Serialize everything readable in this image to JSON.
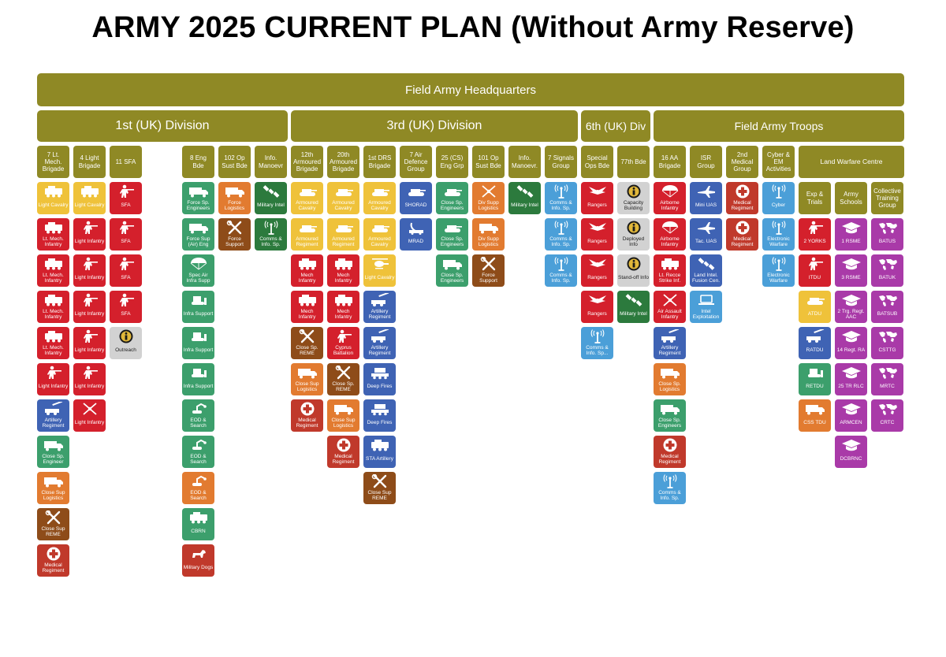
{
  "title": "ARMY 2025 CURRENT PLAN (Without Army Reserve)",
  "colors": {
    "olive": "#8f8925",
    "red": "#d4202c",
    "yellow": "#efc23a",
    "green": "#3c9f6c",
    "orange": "#e27b30",
    "brown": "#8e4c19",
    "darkred": "#c0392b",
    "blue": "#3f63b4",
    "lightblue": "#4b9fd8",
    "darkgreen": "#2c7a3d",
    "grey": "#d2d2d2",
    "magenta": "#a93aa8"
  },
  "hq": "Field Army Headquarters",
  "divisions": [
    "1st (UK) Division",
    "3rd (UK) Division",
    "6th (UK) Div",
    "Field Army Troops"
  ],
  "columns": [
    {
      "header": "7 Lt. Mech. Brigade",
      "tiles": [
        {
          "label": "Light Cavalry",
          "color": "yellow",
          "icon": "vehicle-icon"
        },
        {
          "label": "Lt. Mech. Infantry",
          "color": "red",
          "icon": "vehicle-icon"
        },
        {
          "label": "Lt. Mech. Infantry",
          "color": "red",
          "icon": "vehicle-icon"
        },
        {
          "label": "Lt. Mech. Infantry",
          "color": "red",
          "icon": "vehicle-icon"
        },
        {
          "label": "Lt. Mech. Infantry",
          "color": "red",
          "icon": "vehicle-icon"
        },
        {
          "label": "Light Infantry",
          "color": "red",
          "icon": "soldier-icon"
        },
        {
          "label": "Artillery Regiment",
          "color": "blue",
          "icon": "artillery-icon"
        },
        {
          "label": "Close Sp. Engineer",
          "color": "green",
          "icon": "truck-icon"
        },
        {
          "label": "Close Sup Logistics",
          "color": "orange",
          "icon": "truck-icon"
        },
        {
          "label": "Close Sup REME",
          "color": "brown",
          "icon": "tools-icon"
        },
        {
          "label": "Medical Regiment",
          "color": "darkred",
          "icon": "medical-cross-icon"
        }
      ]
    },
    {
      "header": "4 Light Brigade",
      "tiles": [
        {
          "label": "Light Cavalry",
          "color": "yellow",
          "icon": "vehicle-icon"
        },
        {
          "label": "Light Infantry",
          "color": "red",
          "icon": "soldier-icon"
        },
        {
          "label": "Light Infantry",
          "color": "red",
          "icon": "soldier-icon"
        },
        {
          "label": "Light Infantry",
          "color": "red",
          "icon": "soldier-icon"
        },
        {
          "label": "Light Infantry",
          "color": "red",
          "icon": "soldier-icon"
        },
        {
          "label": "Light Infantry",
          "color": "red",
          "icon": "soldier-icon"
        },
        {
          "label": "Light Infantry",
          "color": "red",
          "icon": "crossed-swords-icon"
        }
      ]
    },
    {
      "header": "11 SFA",
      "tiles": [
        {
          "label": "SFA",
          "color": "red",
          "icon": "soldier-icon"
        },
        {
          "label": "SFA",
          "color": "red",
          "icon": "soldier-icon"
        },
        {
          "label": "SFA",
          "color": "red",
          "icon": "soldier-icon"
        },
        {
          "label": "SFA",
          "color": "red",
          "icon": "soldier-icon"
        },
        {
          "label": "Outreach",
          "color": "grey",
          "icon": "info-icon"
        }
      ]
    },
    {
      "header": "8 Eng Bde",
      "tiles": [
        {
          "label": "Force Sp. Engineers",
          "color": "green",
          "icon": "truck-icon"
        },
        {
          "label": "Force Sup (Air) Eng",
          "color": "green",
          "icon": "truck-icon"
        },
        {
          "label": "Spec Air Infra Supp",
          "color": "green",
          "icon": "parachute-icon"
        },
        {
          "label": "Infra Support",
          "color": "green",
          "icon": "bulldozer-icon"
        },
        {
          "label": "Infra Support",
          "color": "green",
          "icon": "bulldozer-icon"
        },
        {
          "label": "Infra Support",
          "color": "green",
          "icon": "bulldozer-icon"
        },
        {
          "label": "EOD & Search",
          "color": "green",
          "icon": "robot-icon"
        },
        {
          "label": "EOD & Search",
          "color": "green",
          "icon": "robot-icon"
        },
        {
          "label": "EOD & Search",
          "color": "orange",
          "icon": "robot-icon"
        },
        {
          "label": "CBRN",
          "color": "green",
          "icon": "vehicle-icon"
        },
        {
          "label": "Military Dogs",
          "color": "darkred",
          "icon": "dog-icon"
        }
      ]
    },
    {
      "header": "102 Op Sust Bde",
      "tiles": [
        {
          "label": "Force Logistics",
          "color": "orange",
          "icon": "truck-icon"
        },
        {
          "label": "Force Support",
          "color": "brown",
          "icon": "tools-icon"
        }
      ]
    },
    {
      "header": "Info. Manoevr",
      "tiles": [
        {
          "label": "Military Intel",
          "color": "darkgreen",
          "icon": "satellite-icon"
        },
        {
          "label": "Comms & Info. Sp.",
          "color": "darkgreen",
          "icon": "antenna-icon"
        }
      ]
    },
    {
      "header": "12th Armoured Brigade",
      "tiles": [
        {
          "label": "Armoured Cavalry",
          "color": "yellow",
          "icon": "tank-icon"
        },
        {
          "label": "Armoured Regiment",
          "color": "yellow",
          "icon": "tank-icon"
        },
        {
          "label": "Mech Infantry",
          "color": "red",
          "icon": "vehicle-icon"
        },
        {
          "label": "Mech Infantry",
          "color": "red",
          "icon": "vehicle-icon"
        },
        {
          "label": "Close Sp. REME",
          "color": "brown",
          "icon": "tools-icon"
        },
        {
          "label": "Close Sup Logistics",
          "color": "orange",
          "icon": "truck-icon"
        },
        {
          "label": "Medical Regiment",
          "color": "darkred",
          "icon": "medical-cross-icon"
        }
      ]
    },
    {
      "header": "20th Armoured Brigade",
      "tiles": [
        {
          "label": "Armoured Cavalry",
          "color": "yellow",
          "icon": "tank-icon"
        },
        {
          "label": "Armoured Regiment",
          "color": "yellow",
          "icon": "tank-icon"
        },
        {
          "label": "Mech Infantry",
          "color": "red",
          "icon": "vehicle-icon"
        },
        {
          "label": "Mech Infantry",
          "color": "red",
          "icon": "vehicle-icon"
        },
        {
          "label": "Cyprus Battalion",
          "color": "red",
          "icon": "soldier-icon"
        },
        {
          "label": "Close Sp. REME",
          "color": "brown",
          "icon": "tools-icon"
        },
        {
          "label": "Close Sup Logistics",
          "color": "orange",
          "icon": "truck-icon"
        },
        {
          "label": "Medical Regiment",
          "color": "darkred",
          "icon": "medical-cross-icon"
        }
      ]
    },
    {
      "header": "1st DRS Brigade",
      "tiles": [
        {
          "label": "Armoured Cavalry",
          "color": "yellow",
          "icon": "tank-icon"
        },
        {
          "label": "Armoured Cavalry",
          "color": "yellow",
          "icon": "tank-icon"
        },
        {
          "label": "Light Cavalry",
          "color": "yellow",
          "icon": "helicopter-icon"
        },
        {
          "label": "Artillery Regiment",
          "color": "blue",
          "icon": "artillery-icon"
        },
        {
          "label": "Artillery Regiment",
          "color": "blue",
          "icon": "artillery-icon"
        },
        {
          "label": "Deep Fires",
          "color": "blue",
          "icon": "rocket-launcher-icon"
        },
        {
          "label": "Deep Fires",
          "color": "blue",
          "icon": "rocket-launcher-icon"
        },
        {
          "label": "STA Artillery",
          "color": "blue",
          "icon": "vehicle-icon"
        },
        {
          "label": "Close Sup REME",
          "color": "brown",
          "icon": "tools-icon"
        }
      ]
    },
    {
      "header": "7 Air Defence Group",
      "tiles": [
        {
          "label": "SHORAD",
          "color": "blue",
          "icon": "tank-icon"
        },
        {
          "label": "MRAD",
          "color": "blue",
          "icon": "radar-icon"
        }
      ]
    },
    {
      "header": "25 (CS) Eng Grp",
      "tiles": [
        {
          "label": "Close Sp. Engineers",
          "color": "green",
          "icon": "tank-icon"
        },
        {
          "label": "Close Sp. Engineers",
          "color": "green",
          "icon": "tank-icon"
        },
        {
          "label": "Close Sp. Engineers",
          "color": "green",
          "icon": "truck-icon"
        }
      ]
    },
    {
      "header": "101 Op Sust Bde",
      "tiles": [
        {
          "label": "Div Supp Logistics",
          "color": "orange",
          "icon": "crossed-swords-icon"
        },
        {
          "label": "Div Supp Logistics",
          "color": "orange",
          "icon": "truck-icon"
        },
        {
          "label": "Force Support",
          "color": "brown",
          "icon": "tools-icon"
        }
      ]
    },
    {
      "header": "Info. Manoevr.",
      "tiles": [
        {
          "label": "Military Intel",
          "color": "darkgreen",
          "icon": "satellite-icon"
        }
      ]
    },
    {
      "header": "7 Signals Group",
      "tiles": [
        {
          "label": "Comms & Info. Sp.",
          "color": "lightblue",
          "icon": "antenna-icon"
        },
        {
          "label": "Comms & Info. Sp.",
          "color": "lightblue",
          "icon": "antenna-icon"
        },
        {
          "label": "Comms & Info. Sp.",
          "color": "lightblue",
          "icon": "antenna-icon"
        }
      ]
    },
    {
      "header": "Special Ops Bde",
      "tiles": [
        {
          "label": "Rangers",
          "color": "red",
          "icon": "wings-icon"
        },
        {
          "label": "Rangers",
          "color": "red",
          "icon": "wings-icon"
        },
        {
          "label": "Rangers",
          "color": "red",
          "icon": "wings-icon"
        },
        {
          "label": "Rangers",
          "color": "red",
          "icon": "wings-icon"
        },
        {
          "label": "Comms & Info. Sp...",
          "color": "lightblue",
          "icon": "antenna-icon"
        }
      ]
    },
    {
      "header": "77th Bde",
      "tiles": [
        {
          "label": "Capacity Building",
          "color": "grey",
          "icon": "info-icon"
        },
        {
          "label": "Deployed Info",
          "color": "grey",
          "icon": "info-icon"
        },
        {
          "label": "Stand-off Info",
          "color": "grey",
          "icon": "info-icon"
        },
        {
          "label": "Military Intel",
          "color": "darkgreen",
          "icon": "satellite-icon"
        }
      ]
    },
    {
      "header": "16 AA Brigade",
      "tiles": [
        {
          "label": "Airborne Infantry",
          "color": "red",
          "icon": "parachute-icon"
        },
        {
          "label": "Airborne Infantry",
          "color": "red",
          "icon": "parachute-icon"
        },
        {
          "label": "Lt. Recce Strike Inf.",
          "color": "red",
          "icon": "vehicle-icon"
        },
        {
          "label": "Air Assault Infantry",
          "color": "red",
          "icon": "crossed-swords-icon"
        },
        {
          "label": "Artillery Regiment",
          "color": "blue",
          "icon": "artillery-icon"
        },
        {
          "label": "Close Sp. Logistics",
          "color": "orange",
          "icon": "truck-icon"
        },
        {
          "label": "Close Sp. Engineers",
          "color": "green",
          "icon": "truck-icon"
        },
        {
          "label": "Medical Regiment",
          "color": "darkred",
          "icon": "medical-cross-icon"
        },
        {
          "label": "Comms & Info. Sp.",
          "color": "lightblue",
          "icon": "antenna-icon"
        }
      ]
    },
    {
      "header": "ISR Group",
      "tiles": [
        {
          "label": "Mini UAS",
          "color": "blue",
          "icon": "drone-icon"
        },
        {
          "label": "Tac. UAS",
          "color": "blue",
          "icon": "drone-icon"
        },
        {
          "label": "Land Intel. Fusion Cen.",
          "color": "blue",
          "icon": "satellite-icon"
        },
        {
          "label": "Intel Exploitation",
          "color": "lightblue",
          "icon": "laptop-icon"
        }
      ]
    },
    {
      "header": "2nd Medical Group",
      "tiles": [
        {
          "label": "Medical Regiment",
          "color": "darkred",
          "icon": "medical-cross-icon"
        },
        {
          "label": "Medical Regiment",
          "color": "darkred",
          "icon": "medical-cross-icon"
        }
      ]
    },
    {
      "header": "Cyber & EM Activities",
      "tiles": [
        {
          "label": "Cyber",
          "color": "lightblue",
          "icon": "antenna-icon"
        },
        {
          "label": "Electronic Warfare",
          "color": "lightblue",
          "icon": "antenna-icon"
        },
        {
          "label": "Electronic Warfare",
          "color": "lightblue",
          "icon": "antenna-icon"
        }
      ]
    },
    {
      "header": "Exp & Trials",
      "tiles": [
        {
          "label": "2 YORKS",
          "color": "red",
          "icon": "soldier-icon"
        },
        {
          "label": "ITDU",
          "color": "red",
          "icon": "soldier-icon"
        },
        {
          "label": "ATDU",
          "color": "yellow",
          "icon": "tank-icon"
        },
        {
          "label": "RATDU",
          "color": "blue",
          "icon": "artillery-icon"
        },
        {
          "label": "RETDU",
          "color": "green",
          "icon": "bulldozer-icon"
        },
        {
          "label": "CSS TDU",
          "color": "orange",
          "icon": "truck-icon"
        }
      ]
    },
    {
      "header": "Army Schools",
      "tiles": [
        {
          "label": "1 RSME",
          "color": "magenta",
          "icon": "mortarboard-icon"
        },
        {
          "label": "3 RSME",
          "color": "magenta",
          "icon": "mortarboard-icon"
        },
        {
          "label": "2 Trg. Regt. AAC",
          "color": "magenta",
          "icon": "mortarboard-icon"
        },
        {
          "label": "14 Regt. RA",
          "color": "magenta",
          "icon": "mortarboard-icon"
        },
        {
          "label": "25 TR RLC",
          "color": "magenta",
          "icon": "mortarboard-icon"
        },
        {
          "label": "ARMCEN",
          "color": "magenta",
          "icon": "mortarboard-icon"
        },
        {
          "label": "DCBRNC",
          "color": "magenta",
          "icon": "mortarboard-icon"
        }
      ]
    },
    {
      "header": "Collective Training Group",
      "tiles": [
        {
          "label": "BATUS",
          "color": "magenta",
          "icon": "world-map-icon"
        },
        {
          "label": "BATUK",
          "color": "magenta",
          "icon": "world-map-icon"
        },
        {
          "label": "BATSUB",
          "color": "magenta",
          "icon": "world-map-icon"
        },
        {
          "label": "CSTTG",
          "color": "magenta",
          "icon": "world-map-icon"
        },
        {
          "label": "MRTC",
          "color": "magenta",
          "icon": "world-map-icon"
        },
        {
          "label": "CRTC",
          "color": "magenta",
          "icon": "world-map-icon"
        }
      ]
    }
  ],
  "land_warfare_centre": "Land Warfare Centre"
}
